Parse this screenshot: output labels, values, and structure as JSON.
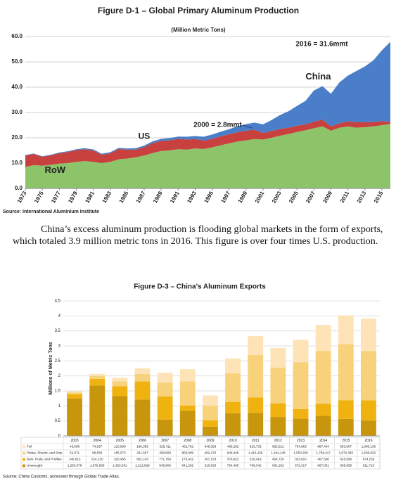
{
  "chart_data": [
    {
      "type": "area",
      "title": "Figure D-1 – Global Primary Aluminum Production",
      "subtitle": "(Million Metric Tons)",
      "x": [
        1973,
        1974,
        1975,
        1976,
        1977,
        1978,
        1979,
        1980,
        1981,
        1982,
        1983,
        1984,
        1985,
        1986,
        1987,
        1988,
        1989,
        1990,
        1991,
        1992,
        1993,
        1994,
        1995,
        1996,
        1997,
        1998,
        1999,
        2000,
        2001,
        2002,
        2003,
        2004,
        2005,
        2006,
        2007,
        2008,
        2009,
        2010,
        2011,
        2012,
        2013,
        2014,
        2015,
        2016
      ],
      "series": [
        {
          "name": "RoW",
          "color": "#8dc46a",
          "values": [
            8.5,
            9.2,
            9.0,
            9.3,
            9.8,
            10.0,
            10.5,
            10.8,
            10.5,
            10.0,
            10.5,
            11.5,
            11.8,
            12.3,
            13.0,
            14.0,
            14.8,
            15.0,
            15.5,
            15.3,
            15.8,
            15.6,
            16.2,
            17.0,
            17.8,
            18.5,
            19.0,
            19.5,
            19.3,
            20.0,
            20.8,
            21.5,
            22.3,
            23.0,
            23.8,
            24.5,
            22.8,
            24.0,
            24.5,
            24.0,
            24.2,
            24.5,
            25.0,
            25.5
          ]
        },
        {
          "name": "US",
          "color": "#c8413f",
          "values": [
            4.5,
            4.4,
            3.5,
            3.8,
            4.1,
            4.4,
            4.6,
            4.7,
            4.5,
            3.3,
            3.4,
            4.1,
            3.5,
            3.0,
            3.3,
            3.9,
            4.0,
            4.0,
            4.1,
            4.0,
            3.7,
            3.3,
            3.4,
            3.6,
            3.6,
            3.7,
            3.8,
            3.7,
            2.6,
            2.7,
            2.7,
            2.5,
            2.5,
            2.3,
            2.6,
            2.7,
            1.7,
            1.7,
            2.0,
            2.1,
            1.9,
            1.7,
            1.6,
            0.8
          ]
        },
        {
          "name": "China",
          "color": "#4a7ec8",
          "values": [
            0.2,
            0.2,
            0.2,
            0.2,
            0.3,
            0.3,
            0.4,
            0.4,
            0.4,
            0.4,
            0.4,
            0.4,
            0.5,
            0.6,
            0.6,
            0.7,
            0.8,
            0.9,
            0.9,
            1.1,
            1.2,
            1.5,
            1.7,
            1.8,
            2.0,
            2.4,
            2.6,
            2.8,
            3.4,
            4.3,
            5.5,
            6.5,
            7.8,
            9.3,
            12.3,
            13.2,
            12.9,
            16.2,
            18.1,
            20.3,
            22.1,
            24.4,
            28.0,
            31.6
          ]
        }
      ],
      "stacked": true,
      "xlim": [
        1973,
        2016
      ],
      "xticks": [
        1973,
        1975,
        1977,
        1979,
        1981,
        1983,
        1985,
        1987,
        1989,
        1991,
        1993,
        1995,
        1997,
        1999,
        2001,
        2003,
        2005,
        2007,
        2009,
        2011,
        2013,
        2015
      ],
      "ylim": [
        0,
        60
      ],
      "yticks": [
        {
          "value": 0,
          "label": "0.0"
        },
        {
          "value": 10,
          "label": "10.0"
        },
        {
          "value": 20,
          "label": "20.0"
        },
        {
          "value": 30,
          "label": "30.0"
        },
        {
          "value": 40,
          "label": "40.0"
        },
        {
          "value": 50,
          "label": "50.0"
        },
        {
          "value": 60,
          "label": "60.0"
        }
      ],
      "grid": true,
      "annotations": [
        "2000 = 2.8mmt",
        "2016 = 31.6mmt"
      ],
      "source": "Source: International Aluminium Institute"
    },
    {
      "type": "bar",
      "title": "Figure D-3 – China’s Aluminum Exports",
      "y_label": "Millions of Metric Tons",
      "categories": [
        "2003",
        "2004",
        "2005",
        "2006",
        "2007",
        "2008",
        "2009",
        "2010",
        "2011",
        "2012",
        "2013",
        "2014",
        "2015",
        "2016"
      ],
      "series": [
        {
          "name": "Foil",
          "color": "#fde3b5",
          "values": [
            0.046008,
            0.074937,
            0.120809,
            0.186359,
            0.325411,
            0.402792,
            0.348353,
            0.499282,
            0.623733,
            0.652812,
            0.754863,
            0.867404,
            0.953807,
            1.080136
          ],
          "value_labels": [
            "46,008",
            "74,937",
            "120,809",
            "186,359",
            "325,411",
            "402,792",
            "348,353",
            "499,282",
            "623,733",
            "652,812",
            "754,863",
            "867,404",
            "953,807",
            "1,080,136"
          ]
        },
        {
          "name": "Plates, Sheets, and Strip",
          "color": "#f7d27a",
          "values": [
            0.052071,
            0.088858,
            0.165573,
            0.251587,
            0.459569,
            0.806809,
            0.482473,
            0.949448,
            1.415236,
            1.194146,
            1.55326,
            1.758417,
            1.87036,
            1.639932
          ],
          "value_labels": [
            "52,071",
            "88,858",
            "165,573",
            "251,587",
            "459,569",
            "806,809",
            "482,473",
            "949,448",
            "1,415,236",
            "1,194,146",
            "1,553,260",
            "1,758,417",
            "1,870,360",
            "1,639,932"
          ]
        },
        {
          "name": "Bars, Rods, and Profiles",
          "color": "#efb20f",
          "values": [
            0.140913,
            0.22412,
            0.326455,
            0.602143,
            0.771769,
            0.173422,
            0.207153,
            0.379922,
            0.518419,
            0.454726,
            0.32381,
            0.40759,
            0.625096,
            0.674259
          ],
          "value_labels": [
            "140,913",
            "224,120",
            "326,455",
            "602,143",
            "771,769",
            "173,422",
            "207,153",
            "379,922",
            "518,419",
            "454,726",
            "323,810",
            "407,590",
            "625,096",
            "674,259"
          ]
        },
        {
          "name": "Unwrought",
          "color": "#c8960c",
          "values": [
            1.250078,
            1.679839,
            1.326361,
            1.212828,
            0.545906,
            0.841292,
            0.310093,
            0.754465,
            0.766342,
            0.631262,
            0.572317,
            0.667051,
            0.565659,
            0.511719
          ],
          "value_labels": [
            "1,250,078",
            "1,679,839",
            "1,326,361",
            "1,212,828",
            "545,906",
            "841,292",
            "310,093",
            "754,465",
            "766,342",
            "631,262",
            "572,317",
            "667,051",
            "565,659",
            "511,719"
          ]
        }
      ],
      "stacked": true,
      "ylim": [
        0,
        4.5
      ],
      "yticks": [
        0,
        0.5,
        1,
        1.5,
        2,
        2.5,
        3,
        3.5,
        4,
        4.5
      ],
      "grid": true,
      "source": "Source: China Customs, accessed through Global Trade Atlas."
    }
  ],
  "text": "China’s excess aluminum production is flooding global markets in the form of exports, which totaled 3.9 million metric tons in 2016.  This figure is over four times U.S. production."
}
